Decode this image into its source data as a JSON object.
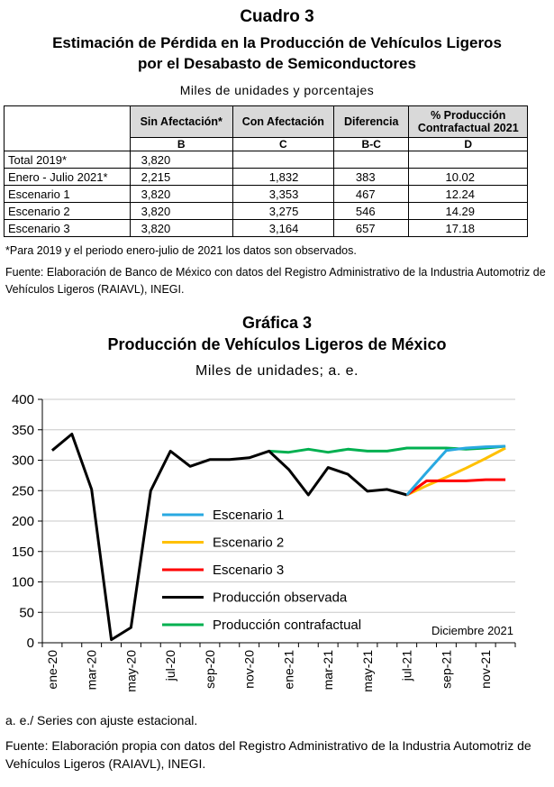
{
  "cuadro": {
    "title": "Cuadro 3",
    "subtitle_line1": "Estimación de Pérdida en la Producción de Vehículos Ligeros",
    "subtitle_line2": "por el Desabasto de Semiconductores",
    "units": "Miles de unidades y porcentajes",
    "headers": [
      "Sin Afectación*",
      "Con Afectación",
      "Diferencia",
      "% Producción Contrafactual 2021"
    ],
    "letters": [
      "B",
      "C",
      "B-C",
      "D"
    ],
    "rows": [
      {
        "name": "Total 2019*",
        "b": "3,820",
        "c": "",
        "bc": "",
        "d": ""
      },
      {
        "name": "Enero - Julio 2021*",
        "b": "2,215",
        "c": "1,832",
        "bc": "383",
        "d": "10.02"
      },
      {
        "name": "Escenario 1",
        "b": "3,820",
        "c": "3,353",
        "bc": "467",
        "d": "12.24"
      },
      {
        "name": "Escenario 2",
        "b": "3,820",
        "c": "3,275",
        "bc": "546",
        "d": "14.29"
      },
      {
        "name": "Escenario 3",
        "b": "3,820",
        "c": "3,164",
        "bc": "657",
        "d": "17.18"
      }
    ],
    "note": "*Para 2019 y el periodo enero-julio de 2021 los datos son observados.",
    "source": "Fuente: Elaboración de Banco de México con datos del Registro Administrativo de la Industria Automotriz de Vehículos Ligeros (RAIAVL), INEGI."
  },
  "grafica": {
    "title": "Gráfica 3",
    "subtitle": "Producción de Vehículos Ligeros de México",
    "units": "Miles de unidades; a. e.",
    "annotation": "Diciembre  2021",
    "footer_note": "a. e./ Series con ajuste estacional.",
    "footer_source": "Fuente: Elaboración propia con datos del Registro Administrativo de la Industria Automotriz de Vehículos Ligeros (RAIAVL), INEGI."
  },
  "chart_data": {
    "type": "line",
    "ylim": [
      0,
      400
    ],
    "yticks": [
      0,
      50,
      100,
      150,
      200,
      250,
      300,
      350,
      400
    ],
    "grid": true,
    "legend_position": "inside-bottom-center",
    "x": [
      "ene-20",
      "feb-20",
      "mar-20",
      "abr-20",
      "may-20",
      "jun-20",
      "jul-20",
      "ago-20",
      "sep-20",
      "oct-20",
      "nov-20",
      "dic-20",
      "ene-21",
      "feb-21",
      "mar-21",
      "abr-21",
      "may-21",
      "jun-21",
      "jul-21",
      "ago-21",
      "sep-21",
      "oct-21",
      "nov-21",
      "dic-21"
    ],
    "xtick_labels": [
      "ene-20",
      "mar-20",
      "may-20",
      "jul-20",
      "sep-20",
      "nov-20",
      "ene-21",
      "mar-21",
      "may-21",
      "jul-21",
      "sep-21",
      "nov-21"
    ],
    "series": [
      {
        "name": "Escenario 1",
        "color": "#29a9e1",
        "values": [
          null,
          null,
          null,
          null,
          null,
          null,
          null,
          null,
          null,
          null,
          null,
          null,
          null,
          null,
          null,
          null,
          null,
          null,
          243,
          280,
          316,
          320,
          322,
          323
        ]
      },
      {
        "name": "Escenario 2",
        "color": "#ffc000",
        "values": [
          null,
          null,
          null,
          null,
          null,
          null,
          null,
          null,
          null,
          null,
          null,
          null,
          null,
          null,
          null,
          null,
          null,
          null,
          243,
          258,
          272,
          287,
          303,
          320
        ]
      },
      {
        "name": "Escenario 3",
        "color": "#ff0000",
        "values": [
          null,
          null,
          null,
          null,
          null,
          null,
          null,
          null,
          null,
          null,
          null,
          null,
          null,
          null,
          null,
          null,
          null,
          null,
          243,
          266,
          266,
          266,
          268,
          268
        ]
      },
      {
        "name": "Producción observada",
        "color": "#000000",
        "values": [
          316,
          343,
          252,
          5,
          25,
          250,
          315,
          290,
          301,
          301,
          304,
          315,
          285,
          243,
          288,
          277,
          249,
          252,
          243,
          null,
          null,
          null,
          null,
          null
        ]
      },
      {
        "name": "Producción contrafactual",
        "color": "#00b050",
        "values": [
          null,
          null,
          null,
          null,
          null,
          null,
          null,
          null,
          null,
          null,
          null,
          315,
          313,
          318,
          313,
          318,
          315,
          315,
          320,
          320,
          320,
          318,
          320,
          323
        ]
      }
    ]
  }
}
